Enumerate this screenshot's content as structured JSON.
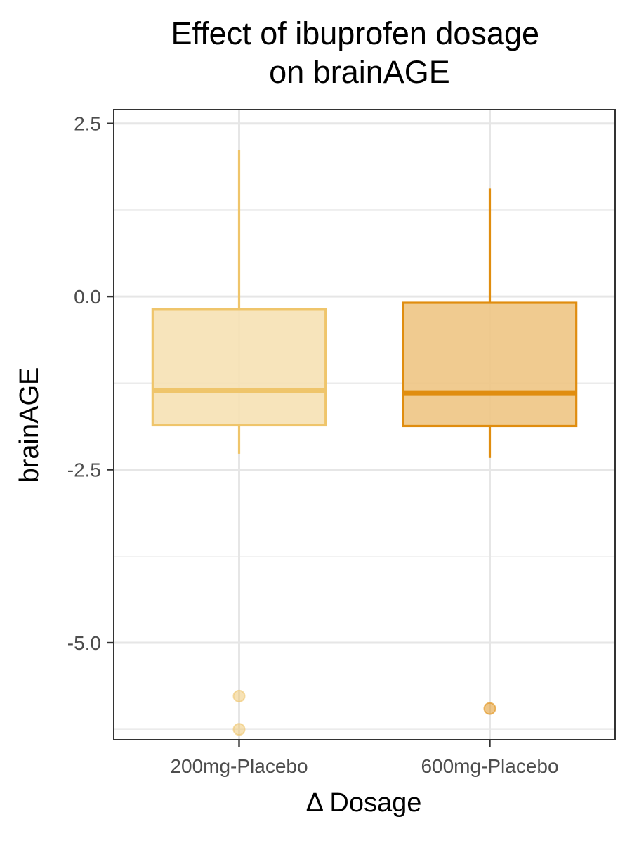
{
  "chart_data": {
    "type": "boxplot",
    "title": "Effect of ibuprofen dosage\non brainAGE",
    "title_lines": [
      "Effect of ibuprofen dosage",
      "on brainAGE"
    ],
    "xlabel": "Δ Dosage",
    "ylabel": "brainAGE",
    "categories": [
      "200mg-Placebo",
      "600mg-Placebo"
    ],
    "ylim": [
      -6.4,
      2.7
    ],
    "yticks": [
      2.5,
      0.0,
      -2.5,
      -5.0
    ],
    "ytick_labels": [
      "2.5",
      "0.0",
      "-2.5",
      "-5.0"
    ],
    "grid": true,
    "legend": "none",
    "boxes": [
      {
        "category": "200mg-Placebo",
        "whisker_low": -2.27,
        "q1": -1.86,
        "median": -1.36,
        "q3": -0.18,
        "whisker_high": 2.12,
        "outliers": [
          -5.77,
          -6.25
        ],
        "fill": "#f6e1b4",
        "stroke": "#efc56b"
      },
      {
        "category": "600mg-Placebo",
        "whisker_low": -2.33,
        "q1": -1.87,
        "median": -1.39,
        "q3": -0.09,
        "whisker_high": 1.56,
        "outliers": [
          -5.95
        ],
        "fill": "#eec584",
        "stroke": "#e08d0f"
      }
    ],
    "colors": {
      "grid_major": "#e6e6e6",
      "grid_minor": "#ebebeb",
      "panel_border": "#333333",
      "tick_text": "#4d4d4d"
    }
  }
}
